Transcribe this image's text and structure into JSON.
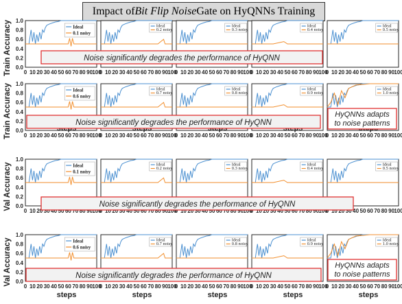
{
  "title": {
    "prefix": "Impact of ",
    "italic": "Bit Flip Noise",
    "suffix": " Gate on HyQNNs Training"
  },
  "colors": {
    "ideal": "#4a8fd0",
    "noisy": "#f28e2b",
    "callout_border": "#e03030",
    "callout_fill": "#f2f2f2"
  },
  "chart_data": {
    "type": "line",
    "xlim": [
      0,
      100
    ],
    "ylim": [
      0,
      1.0
    ],
    "x_ticks": [
      0,
      10,
      20,
      30,
      40,
      50,
      60,
      70,
      80,
      90,
      100
    ],
    "y_ticks": [
      0.0,
      0.2,
      0.4,
      0.6,
      0.8,
      1.0
    ],
    "xlabel": "steps",
    "rows": [
      {
        "ylabel": "Train Accuracy",
        "noise": [
          0.1,
          0.2,
          0.3,
          0.4,
          0.5
        ],
        "callout": "Noise significantly degrades the performance of HyQNN"
      },
      {
        "ylabel": "Train Accuracy",
        "noise": [
          0.6,
          0.7,
          0.8,
          0.9,
          1.0
        ],
        "callout": "Noise significantly degrades the performance of HyQNN",
        "side_callout": [
          "HyQNNs adapts",
          "to noise patterns"
        ]
      },
      {
        "ylabel": "Val Accuracy",
        "noise": [
          0.1,
          0.2,
          0.3,
          0.4,
          0.5
        ],
        "callout": "Noise significantly degrades the performance of HyQNN"
      },
      {
        "ylabel": "Val Accuracy",
        "noise": [
          0.6,
          0.7,
          0.8,
          0.9,
          1.0
        ],
        "callout": "Noise significantly degrades the performance of HyQNN",
        "side_callout": [
          "HyQNNs adapts",
          "to noise patterns"
        ]
      }
    ],
    "legend": {
      "ideal": "Ideal",
      "noisy_suffix": " noisy"
    },
    "series": [
      {
        "name": "Ideal",
        "x": [
          0,
          5,
          8,
          10,
          12,
          14,
          16,
          18,
          20,
          22,
          24,
          26,
          28,
          30,
          34,
          38,
          42,
          46,
          50,
          60,
          70,
          80,
          90,
          100
        ],
        "values": [
          0.5,
          0.5,
          0.8,
          0.55,
          0.75,
          0.5,
          0.7,
          0.55,
          0.75,
          0.6,
          0.8,
          0.75,
          0.85,
          0.9,
          0.93,
          0.95,
          0.97,
          0.98,
          1.0,
          1.0,
          1.0,
          1.0,
          1.0,
          1.0
        ]
      },
      {
        "name": "0.1 noisy",
        "x": [
          0,
          10,
          20,
          30,
          40,
          50,
          60,
          62,
          64,
          66,
          68,
          70,
          80,
          90,
          100
        ],
        "values": [
          0.5,
          0.5,
          0.5,
          0.5,
          0.5,
          0.5,
          0.5,
          0.62,
          0.45,
          0.62,
          0.5,
          0.5,
          0.5,
          0.5,
          0.5
        ]
      }
    ]
  }
}
